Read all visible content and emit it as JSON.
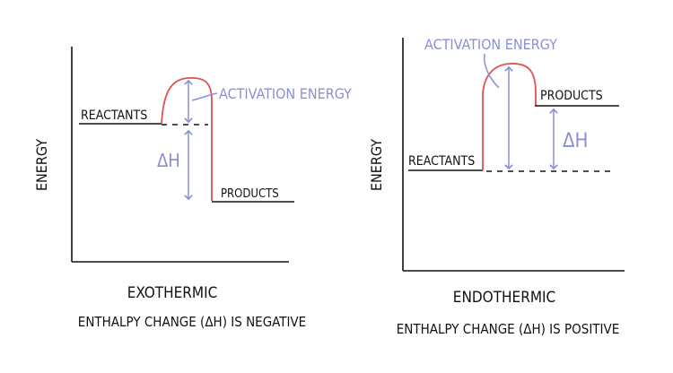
{
  "colors": {
    "axis": "#111111",
    "curve": "#e0524f",
    "arrow": "#8a8fd6",
    "label": "#111111",
    "annotation": "#8a8fd6"
  },
  "exothermic": {
    "y_axis_label": "ENERGY",
    "reactants_label": "REACTANTS",
    "products_label": "PRODUCTS",
    "activation_label": "ACTIVATION ENERGY",
    "delta_h_label": "ΔH",
    "title": "EXOTHERMIC",
    "caption": "ENTHALPY CHANGE (ΔH) IS NEGATIVE"
  },
  "endothermic": {
    "y_axis_label": "ENERGY",
    "reactants_label": "REACTANTS",
    "products_label": "PRODUCTS",
    "activation_label": "ACTIVATION ENERGY",
    "delta_h_label": "ΔH",
    "title": "ENDOTHERMIC",
    "caption": "ENTHALPY CHANGE (ΔH) IS POSITIVE"
  }
}
